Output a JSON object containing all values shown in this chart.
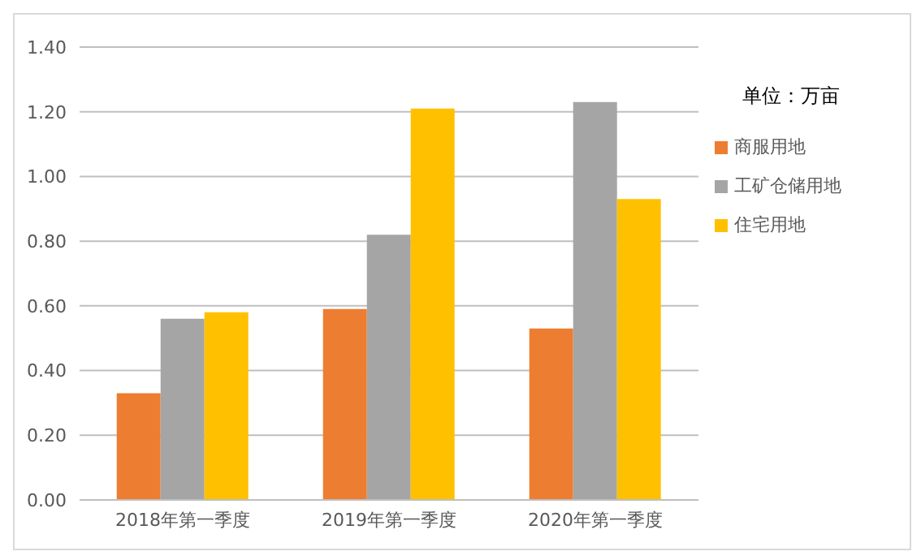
{
  "chart_data": {
    "type": "bar",
    "legend_title": "单位：万亩",
    "categories": [
      "2018年第一季度",
      "2019年第一季度",
      "2020年第一季度"
    ],
    "series": [
      {
        "name": "商服用地",
        "color": "#ed7d31",
        "values": [
          0.33,
          0.59,
          0.53
        ]
      },
      {
        "name": "工矿仓储用地",
        "color": "#a5a5a5",
        "values": [
          0.56,
          0.82,
          1.23
        ]
      },
      {
        "name": "住宅用地",
        "color": "#ffc000",
        "values": [
          0.58,
          1.21,
          0.93
        ]
      }
    ],
    "ylim": [
      0,
      1.4
    ],
    "yticks": [
      {
        "value": 0,
        "label": "0.00"
      },
      {
        "value": 0.2,
        "label": "0.20"
      },
      {
        "value": 0.4,
        "label": "0.40"
      },
      {
        "value": 0.6,
        "label": "0.60"
      },
      {
        "value": 0.8,
        "label": "0.80"
      },
      {
        "value": 1,
        "label": "1.00"
      },
      {
        "value": 1.2,
        "label": "1.20"
      },
      {
        "value": 1.4,
        "label": "1.40"
      }
    ],
    "grid": "y",
    "legend": "right"
  }
}
